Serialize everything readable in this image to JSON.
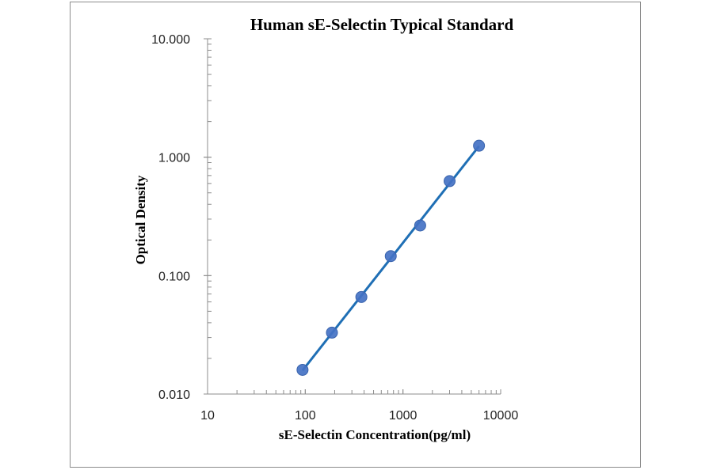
{
  "chart_data": {
    "type": "scatter",
    "title": "Human sE-Selectin Typical Standard",
    "xlabel": "sE-Selectin Concentration(pg/ml)",
    "ylabel": "Optical Density",
    "xscale": "log",
    "yscale": "log",
    "xlim": [
      10,
      10000
    ],
    "ylim": [
      0.01,
      10
    ],
    "xticks": [
      "10",
      "100",
      "1000",
      "10000"
    ],
    "yticks": [
      "0.010",
      "0.100",
      "1.000",
      "10.000"
    ],
    "grid": false,
    "legend": "none",
    "series": [
      {
        "x": [
          93.75,
          187.5,
          375,
          750,
          1500,
          3000,
          6000
        ],
        "y": [
          0.016,
          0.033,
          0.066,
          0.146,
          0.265,
          0.628,
          1.25
        ],
        "marker_color": "#4472c4",
        "line_color": "#1f6fb5",
        "fit": "power trendline"
      }
    ]
  }
}
